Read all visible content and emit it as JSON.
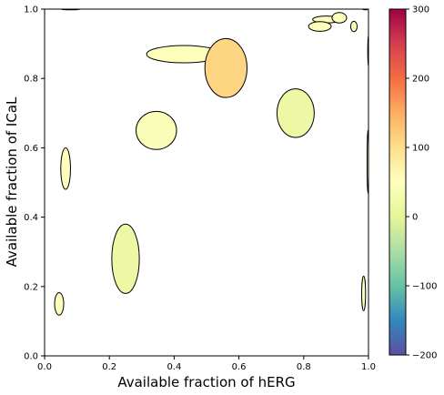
{
  "chart_data": [
    {
      "type": "scatter",
      "marker": "ellipse",
      "xlabel": "Available fraction of hERG",
      "ylabel": "Available fraction of ICaL",
      "xlim": [
        0,
        1
      ],
      "ylim": [
        0,
        1
      ],
      "x_ticks": [
        "0.0",
        "0.2",
        "0.4",
        "0.6",
        "0.8",
        "1.0"
      ],
      "y_ticks": [
        "0.0",
        "0.2",
        "0.4",
        "0.6",
        "0.8",
        "1.0"
      ],
      "grid": false,
      "points": [
        {
          "x": 0.43,
          "y": 0.87,
          "w": 0.23,
          "h": 0.05,
          "c": 45
        },
        {
          "x": 0.56,
          "y": 0.83,
          "w": 0.13,
          "h": 0.17,
          "c": 110
        },
        {
          "x": 0.345,
          "y": 0.65,
          "w": 0.125,
          "h": 0.11,
          "c": 40
        },
        {
          "x": 0.775,
          "y": 0.7,
          "w": 0.115,
          "h": 0.14,
          "c": 15
        },
        {
          "x": 0.065,
          "y": 0.54,
          "w": 0.03,
          "h": 0.12,
          "c": 45
        },
        {
          "x": 0.25,
          "y": 0.28,
          "w": 0.085,
          "h": 0.2,
          "c": 15
        },
        {
          "x": 0.045,
          "y": 0.15,
          "w": 0.028,
          "h": 0.065,
          "c": 45
        },
        {
          "x": 0.87,
          "y": 0.97,
          "w": 0.085,
          "h": 0.02,
          "c": 45
        },
        {
          "x": 0.91,
          "y": 0.975,
          "w": 0.045,
          "h": 0.03,
          "c": 45
        },
        {
          "x": 0.85,
          "y": 0.95,
          "w": 0.07,
          "h": 0.028,
          "c": 45
        },
        {
          "x": 0.955,
          "y": 0.95,
          "w": 0.02,
          "h": 0.03,
          "c": 45
        },
        {
          "x": 0.08,
          "y": 1.0,
          "w": 0.06,
          "h": 0.004,
          "c": 45
        },
        {
          "x": 0.985,
          "y": 0.18,
          "w": 0.012,
          "h": 0.1,
          "c": 45
        },
        {
          "x": 0.998,
          "y": 0.56,
          "w": 0.004,
          "h": 0.18,
          "c": 45
        },
        {
          "x": 1.0,
          "y": 0.88,
          "w": 0.004,
          "h": 0.09,
          "c": 45
        },
        {
          "x": 0.99,
          "y": 1.0,
          "w": 0.014,
          "h": 0.004,
          "c": 45
        }
      ]
    },
    {
      "type": "colorbar",
      "cmap": "Spectral_r",
      "clim": [
        -200,
        300
      ],
      "ticks": [
        "300",
        "200",
        "100",
        "0",
        "−100",
        "−200"
      ]
    }
  ]
}
